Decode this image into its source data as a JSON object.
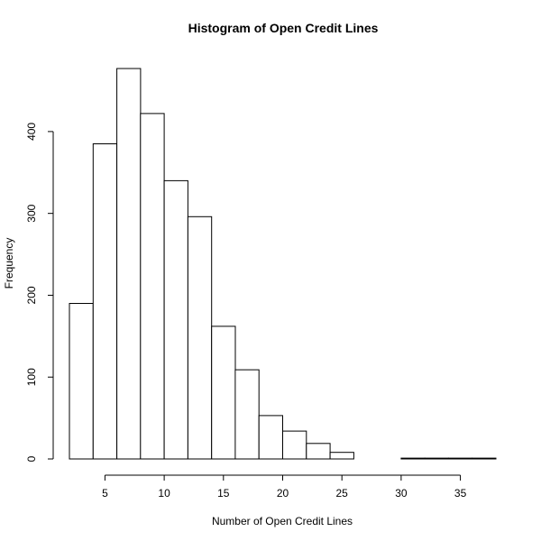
{
  "chart_data": {
    "type": "bar",
    "title": "Histogram of Open Credit Lines",
    "xlabel": "Number of Open Credit Lines",
    "ylabel": "Frequency",
    "bins": [
      {
        "x0": 2,
        "x1": 4,
        "count": 190
      },
      {
        "x0": 4,
        "x1": 6,
        "count": 385
      },
      {
        "x0": 6,
        "x1": 8,
        "count": 477
      },
      {
        "x0": 8,
        "x1": 10,
        "count": 422
      },
      {
        "x0": 10,
        "x1": 12,
        "count": 340
      },
      {
        "x0": 12,
        "x1": 14,
        "count": 296
      },
      {
        "x0": 14,
        "x1": 16,
        "count": 162
      },
      {
        "x0": 16,
        "x1": 18,
        "count": 109
      },
      {
        "x0": 18,
        "x1": 20,
        "count": 53
      },
      {
        "x0": 20,
        "x1": 22,
        "count": 34
      },
      {
        "x0": 22,
        "x1": 24,
        "count": 19
      },
      {
        "x0": 24,
        "x1": 26,
        "count": 8
      },
      {
        "x0": 26,
        "x1": 28,
        "count": 0
      },
      {
        "x0": 28,
        "x1": 30,
        "count": 0
      },
      {
        "x0": 30,
        "x1": 32,
        "count": 1
      },
      {
        "x0": 32,
        "x1": 34,
        "count": 1
      },
      {
        "x0": 34,
        "x1": 36,
        "count": 1
      },
      {
        "x0": 36,
        "x1": 38,
        "count": 1
      }
    ],
    "xticks": [
      5,
      10,
      15,
      20,
      25,
      30,
      35
    ],
    "yticks": [
      0,
      100,
      200,
      300,
      400
    ],
    "xlim": [
      2,
      38
    ],
    "ylim": [
      0,
      477
    ],
    "grid": false,
    "bar_fill": "#ffffff",
    "bar_stroke": "#000000"
  }
}
